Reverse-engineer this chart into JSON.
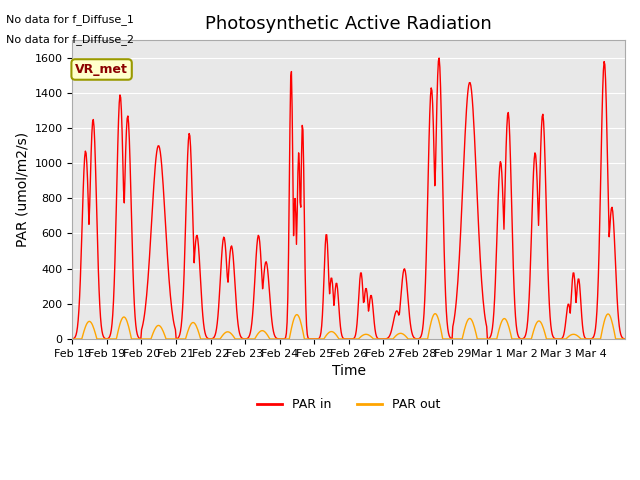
{
  "title": "Photosynthetic Active Radiation",
  "ylabel": "PAR (umol/m2/s)",
  "xlabel": "Time",
  "annotation_line1": "No data for f_Diffuse_1",
  "annotation_line2": "No data for f_Diffuse_2",
  "legend_box_label": "VR_met",
  "bg_color": "#e8e8e8",
  "fig_bg_color": "#ffffff",
  "ylim": [
    0,
    1700
  ],
  "yticks": [
    0,
    200,
    400,
    600,
    800,
    1000,
    1200,
    1400,
    1600
  ],
  "x_tick_labels": [
    "Feb 18",
    "Feb 19",
    "Feb 20",
    "Feb 21",
    "Feb 22",
    "Feb 23",
    "Feb 24",
    "Feb 25",
    "Feb 26",
    "Feb 27",
    "Feb 28",
    "Feb 29",
    "Mar 1",
    "Mar 2",
    "Mar 3",
    "Mar 4"
  ],
  "par_in_color": "#ff0000",
  "par_out_color": "#ffa500",
  "line_width": 1.0,
  "title_fontsize": 13,
  "axis_label_fontsize": 10,
  "tick_fontsize": 8,
  "par_in_daily_peaks": [
    [
      1070,
      1250
    ],
    [
      1390,
      1270
    ],
    [
      1100
    ],
    [
      1170,
      590
    ],
    [
      580,
      530
    ],
    [
      590,
      440
    ],
    [
      1540,
      800,
      1060,
      1230
    ],
    [
      600,
      350,
      320
    ],
    [
      380,
      290,
      250
    ],
    [
      160,
      400
    ],
    [
      1430,
      1600
    ],
    [
      1460
    ],
    [
      1010,
      1290
    ],
    [
      1060,
      1280
    ],
    [
      200,
      380,
      345
    ],
    [
      1580,
      750
    ]
  ],
  "par_out_fractions": [
    0.08,
    0.09,
    0.07,
    0.08,
    0.07,
    0.08,
    0.09,
    0.07,
    0.07,
    0.08,
    0.09,
    0.08,
    0.09,
    0.08,
    0.07,
    0.09
  ]
}
